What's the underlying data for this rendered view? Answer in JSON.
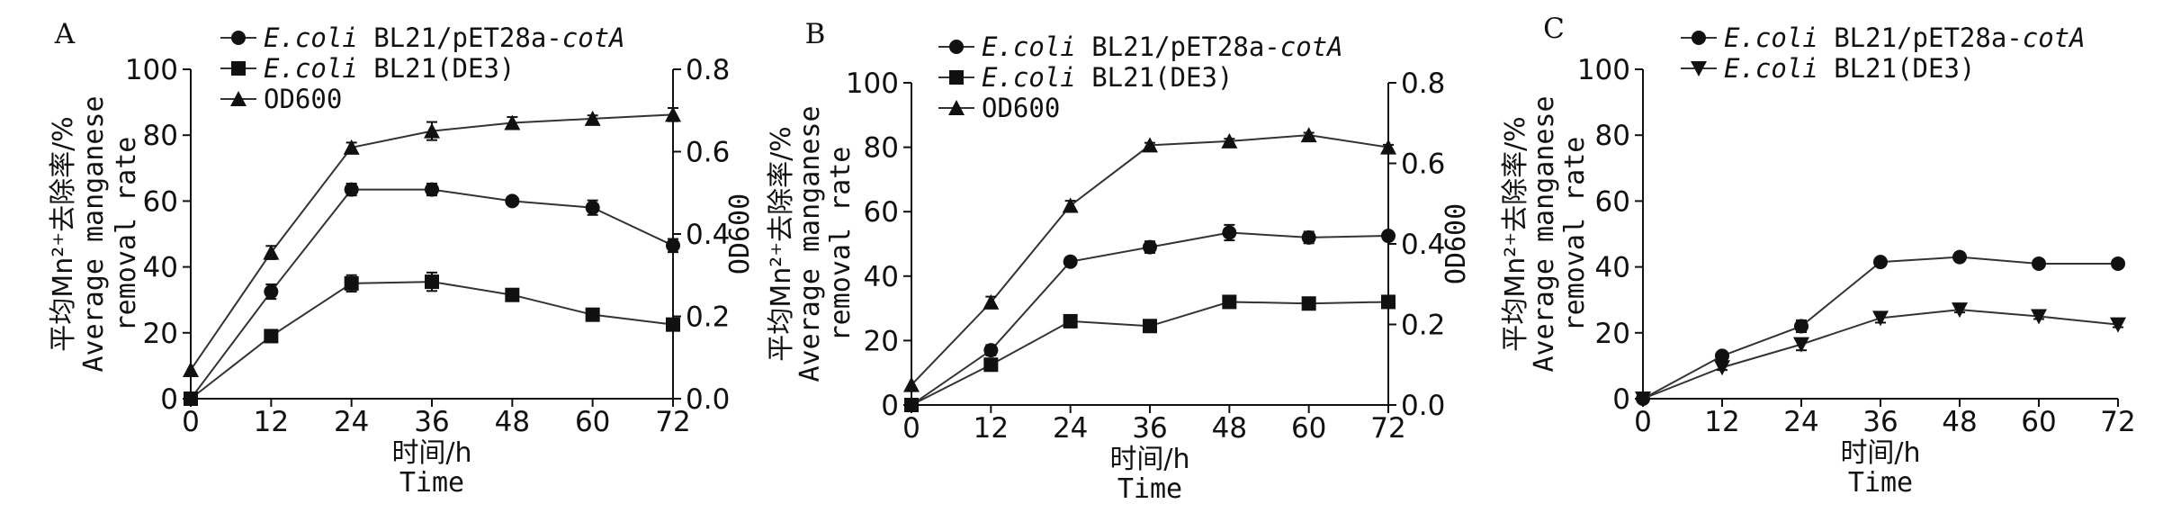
{
  "chart_data": [
    {
      "panel": "A",
      "type": "line",
      "x": [
        0,
        12,
        24,
        36,
        48,
        60,
        72
      ],
      "xlabel": "时间/h",
      "xlabel_en": "Time",
      "ylabel": "平均Mn²⁺去除率/%",
      "ylabel_en": "Average manganese",
      "ylabel_en2": "removal rate",
      "ylim": [
        0,
        100
      ],
      "yticks": [
        0,
        20,
        40,
        60,
        80,
        100
      ],
      "ytick_labels": [
        "0",
        "20",
        "40",
        "60",
        "80",
        "100"
      ],
      "y2label": "OD600",
      "y2lim": [
        0,
        0.8
      ],
      "y2ticks": [
        0,
        0.2,
        0.4,
        0.6,
        0.8
      ],
      "y2tick_labels": [
        "0.0",
        "0.2",
        "0.4",
        "0.6",
        "0.8"
      ],
      "xtick_labels": [
        "0",
        "12",
        "24",
        "36",
        "48",
        "60",
        "72"
      ],
      "legend_position": "top-left",
      "series": [
        {
          "name_italic": "E.coli",
          "name_plain": " BL21/pET28a-",
          "name_italic2": "cotA",
          "marker": "circle",
          "axis": "left",
          "values": [
            0,
            32.5,
            63.5,
            63.5,
            60.0,
            58.0,
            46.5
          ],
          "errors": [
            0,
            2.2,
            1.8,
            1.8,
            1.0,
            2.2,
            2.0
          ]
        },
        {
          "name_italic": "E.coli",
          "name_plain": " BL21(DE3)",
          "name_italic2": "",
          "marker": "square",
          "axis": "left",
          "values": [
            0,
            19.0,
            35.0,
            35.5,
            31.5,
            25.5,
            22.5
          ],
          "errors": [
            0,
            0.8,
            2.5,
            2.8,
            1.6,
            1.0,
            1.8
          ]
        },
        {
          "name_italic": "",
          "name_plain": "OD600",
          "name_italic2": "",
          "marker": "triangle",
          "axis": "right",
          "values": [
            0.07,
            0.355,
            0.61,
            0.65,
            0.67,
            0.68,
            0.69
          ],
          "errors": [
            0,
            0.016,
            0.012,
            0.022,
            0.014,
            0.008,
            0.016
          ]
        }
      ]
    },
    {
      "panel": "B",
      "type": "line",
      "x": [
        0,
        12,
        24,
        36,
        48,
        60,
        72
      ],
      "xlabel": "时间/h",
      "xlabel_en": "Time",
      "ylabel": "平均Mn²⁺去除率/%",
      "ylabel_en": "Average manganese",
      "ylabel_en2": "removal rate",
      "ylim": [
        0,
        100
      ],
      "yticks": [
        0,
        20,
        40,
        60,
        80,
        100
      ],
      "ytick_labels": [
        "0",
        "20",
        "40",
        "60",
        "80",
        "100"
      ],
      "y2label": "OD600",
      "y2lim": [
        0,
        0.8
      ],
      "y2ticks": [
        0,
        0.2,
        0.4,
        0.6,
        0.8
      ],
      "y2tick_labels": [
        "0.0",
        "0.2",
        "0.4",
        "0.6",
        "0.8"
      ],
      "xtick_labels": [
        "0",
        "12",
        "24",
        "36",
        "48",
        "60",
        "72"
      ],
      "legend_position": "top-left",
      "series": [
        {
          "name_italic": "E.coli",
          "name_plain": " BL21/pET28a-",
          "name_italic2": "cotA",
          "marker": "circle",
          "axis": "left",
          "values": [
            0,
            17.0,
            44.5,
            49.0,
            53.5,
            52.0,
            52.5
          ],
          "errors": [
            0,
            1.6,
            1.0,
            1.8,
            2.4,
            1.8,
            1.0
          ]
        },
        {
          "name_italic": "E.coli",
          "name_plain": " BL21(DE3)",
          "name_italic2": "",
          "marker": "square",
          "axis": "left",
          "values": [
            0,
            12.5,
            26.0,
            24.5,
            32.0,
            31.5,
            32.0
          ],
          "errors": [
            0,
            0.8,
            0.8,
            0.8,
            0.8,
            0.8,
            0.8
          ]
        },
        {
          "name_italic": "",
          "name_plain": "OD600",
          "name_italic2": "",
          "marker": "triangle",
          "axis": "right",
          "values": [
            0.05,
            0.255,
            0.495,
            0.645,
            0.655,
            0.67,
            0.64
          ],
          "errors": [
            0,
            0.014,
            0.012,
            0.006,
            0.006,
            0.006,
            0.006
          ]
        }
      ]
    },
    {
      "panel": "C",
      "type": "line",
      "x": [
        0,
        12,
        24,
        36,
        48,
        60,
        72
      ],
      "xlabel": "时间/h",
      "xlabel_en": "Time",
      "ylabel": "平均Mn²⁺去除率/%",
      "ylabel_en": "Average manganese",
      "ylabel_en2": "removal rate",
      "ylim": [
        0,
        100
      ],
      "yticks": [
        0,
        20,
        40,
        60,
        80,
        100
      ],
      "ytick_labels": [
        "0",
        "20",
        "40",
        "60",
        "80",
        "100"
      ],
      "xtick_labels": [
        "0",
        "12",
        "24",
        "36",
        "48",
        "60",
        "72"
      ],
      "legend_position": "top-left",
      "series": [
        {
          "name_italic": "E.coli",
          "name_plain": " BL21/pET28a-",
          "name_italic2": "cotA",
          "marker": "circle",
          "axis": "left",
          "values": [
            0,
            13.0,
            22.0,
            41.5,
            43.0,
            41.0,
            41.0
          ],
          "errors": [
            0,
            0.8,
            1.8,
            0.8,
            1.0,
            0.8,
            0.8
          ]
        },
        {
          "name_italic": "E.coli",
          "name_plain": " BL21(DE3)",
          "name_italic2": "",
          "marker": "triangle-down",
          "axis": "left",
          "values": [
            0,
            9.5,
            16.5,
            24.5,
            27.0,
            25.0,
            22.5
          ],
          "errors": [
            0,
            0.8,
            1.8,
            1.4,
            0.8,
            0.8,
            0.8
          ]
        }
      ]
    }
  ]
}
